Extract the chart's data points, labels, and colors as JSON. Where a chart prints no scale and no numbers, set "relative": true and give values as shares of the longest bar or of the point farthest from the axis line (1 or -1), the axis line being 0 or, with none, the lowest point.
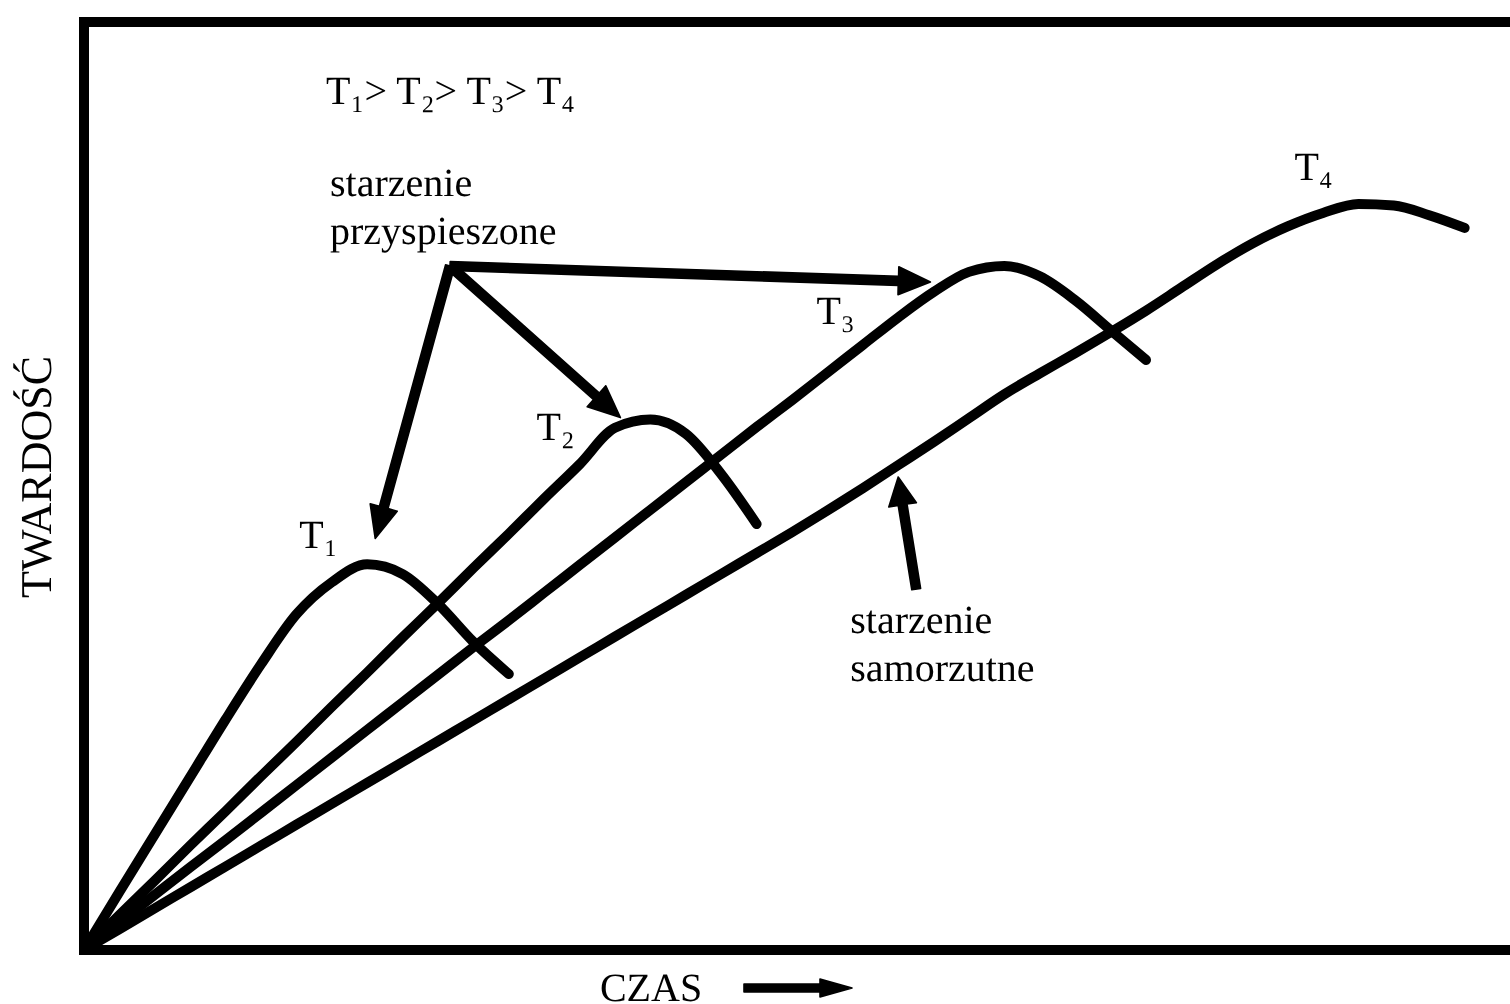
{
  "chart_data": {
    "type": "line",
    "relative": true,
    "xlabel": "CZAS",
    "ylabel": "TWARDOŚĆ",
    "categories": [
      null,
      null,
      null,
      null,
      null,
      null,
      null,
      null,
      null,
      null,
      null,
      null,
      null,
      null,
      null,
      null,
      null,
      null,
      null,
      null,
      null,
      null,
      null,
      null,
      null,
      null,
      null,
      null,
      null,
      null,
      null,
      null,
      null,
      null,
      null,
      null,
      null,
      null,
      null,
      null,
      null
    ],
    "annotations": [
      "T₁> T₂> T₃> T₄",
      "starzenie przyspieszone",
      "starzenie samorzutne"
    ],
    "series": [
      {
        "name": "T₁",
        "color": "#000000",
        "values": [
          0,
          0.078,
          0.155,
          0.232,
          0.309,
          0.383,
          0.45,
          0.493,
          0.517,
          0.504,
          0.464,
          0.413,
          0.37,
          null,
          null,
          null,
          null,
          null,
          null,
          null,
          null,
          null,
          null,
          null,
          null,
          null,
          null,
          null,
          null,
          null,
          null,
          null,
          null,
          null,
          null,
          null,
          null,
          null,
          null,
          null,
          null
        ]
      },
      {
        "name": "T₂",
        "color": "#000000",
        "values": [
          0,
          0.047,
          0.093,
          0.14,
          0.186,
          0.233,
          0.279,
          0.326,
          0.372,
          0.419,
          0.465,
          0.512,
          0.558,
          0.605,
          0.651,
          0.7,
          0.711,
          0.692,
          0.638,
          0.571,
          null,
          null,
          null,
          null,
          null,
          null,
          null,
          null,
          null,
          null,
          null,
          null,
          null,
          null,
          null,
          null,
          null,
          null,
          null,
          null,
          null
        ]
      },
      {
        "name": "T₃",
        "color": "#000000",
        "values": [
          0,
          0.037,
          0.074,
          0.111,
          0.147,
          0.184,
          0.221,
          0.258,
          0.295,
          0.332,
          0.369,
          0.406,
          0.442,
          0.479,
          0.516,
          0.553,
          0.59,
          0.627,
          0.664,
          0.701,
          0.737,
          0.774,
          0.811,
          0.848,
          0.882,
          0.909,
          0.917,
          0.903,
          0.871,
          0.831,
          0.791,
          null,
          null,
          null,
          null,
          null,
          null,
          null,
          null,
          null,
          null
        ]
      },
      {
        "name": "T₄",
        "color": "#000000",
        "values": [
          0,
          0.028,
          0.056,
          0.084,
          0.112,
          0.14,
          0.168,
          0.196,
          0.224,
          0.252,
          0.28,
          0.308,
          0.336,
          0.364,
          0.392,
          0.42,
          0.448,
          0.476,
          0.504,
          0.532,
          0.56,
          0.589,
          0.619,
          0.65,
          0.681,
          0.713,
          0.745,
          0.773,
          0.8,
          0.828,
          0.857,
          0.888,
          0.919,
          0.947,
          0.97,
          0.988,
          1,
          0.998,
          0.985,
          0.968,
          null
        ]
      }
    ]
  }
}
